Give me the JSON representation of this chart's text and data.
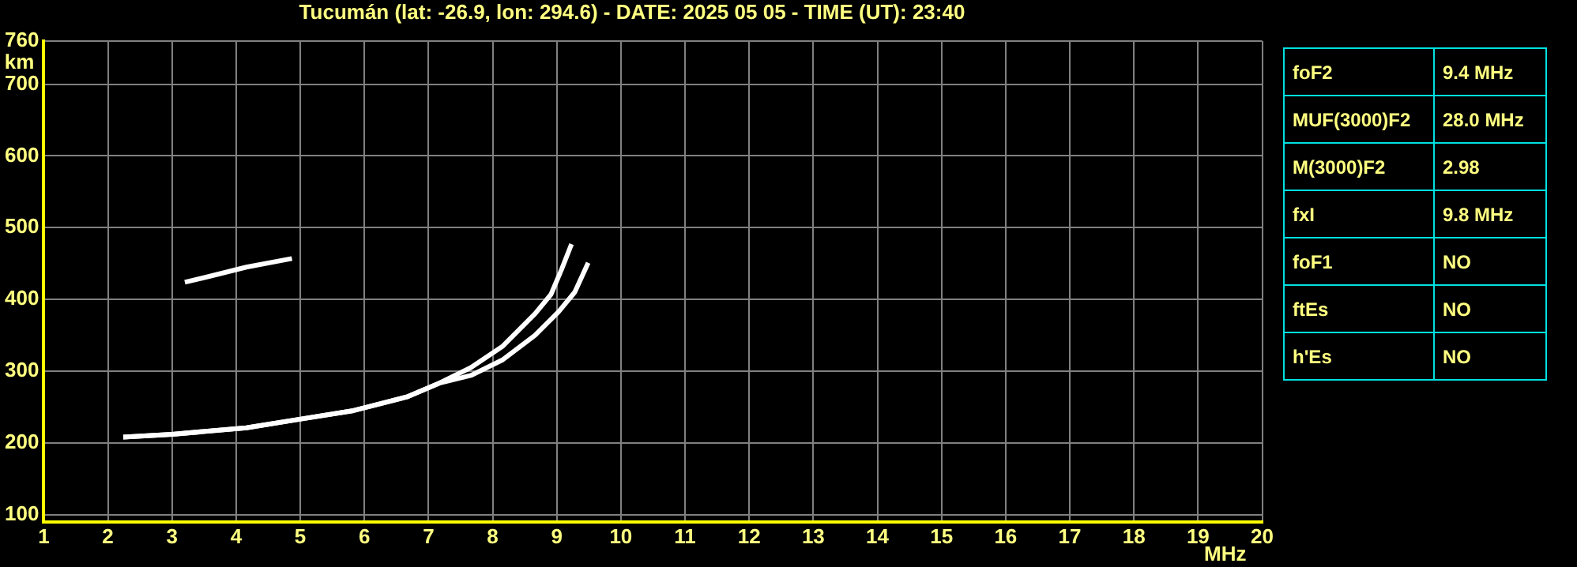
{
  "chart_data": [
    {
      "type": "line",
      "title": "Tucumán (lat: -26.9, lon: 294.6) - DATE: 2025 05 05 - TIME (UT): 23:40",
      "xlabel": "MHz",
      "ylabel": "km",
      "xlim": [
        1,
        20
      ],
      "xticks": [
        1,
        2,
        3,
        4,
        5,
        6,
        7,
        8,
        9,
        10,
        11,
        12,
        13,
        14,
        15,
        16,
        17,
        18,
        19,
        20
      ],
      "ylim": [
        90,
        760
      ],
      "yticks": [
        100,
        200,
        300,
        400,
        500,
        600,
        700,
        760
      ],
      "grid": true,
      "legend": false,
      "marker": "none",
      "line_style": "solid",
      "series": [
        {
          "color": "#ffffff",
          "x": [
            2.24,
            3.0,
            4.16,
            4.99,
            5.83,
            6.66,
            7.16,
            7.66,
            8.16,
            8.66,
            8.91,
            9.08,
            9.23
          ],
          "values": [
            208,
            212,
            221,
            233,
            245,
            264,
            283,
            305,
            335,
            380,
            407,
            443,
            477
          ]
        },
        {
          "color": "#ffffff",
          "x": [
            2.24,
            3.0,
            4.16,
            4.99,
            5.83,
            6.66,
            7.16,
            7.66,
            8.16,
            8.66,
            9.03,
            9.28,
            9.49
          ],
          "values": [
            208,
            212,
            221,
            233,
            245,
            264,
            283,
            294,
            316,
            350,
            383,
            410,
            451
          ]
        },
        {
          "color": "#ffffff",
          "x": [
            3.2,
            3.58,
            4.16,
            4.87
          ],
          "values": [
            424,
            432,
            445,
            457
          ]
        }
      ]
    },
    {
      "type": "other",
      "annotations": [
        "foF2",
        "9.4 MHz",
        "MUF(3000)F2",
        "28.0 MHz",
        "M(3000)F2",
        "2.98",
        "fxI",
        "9.8 MHz",
        "foF1",
        "NO",
        "ftEs",
        "NO",
        "h'Es",
        "NO"
      ]
    }
  ]
}
